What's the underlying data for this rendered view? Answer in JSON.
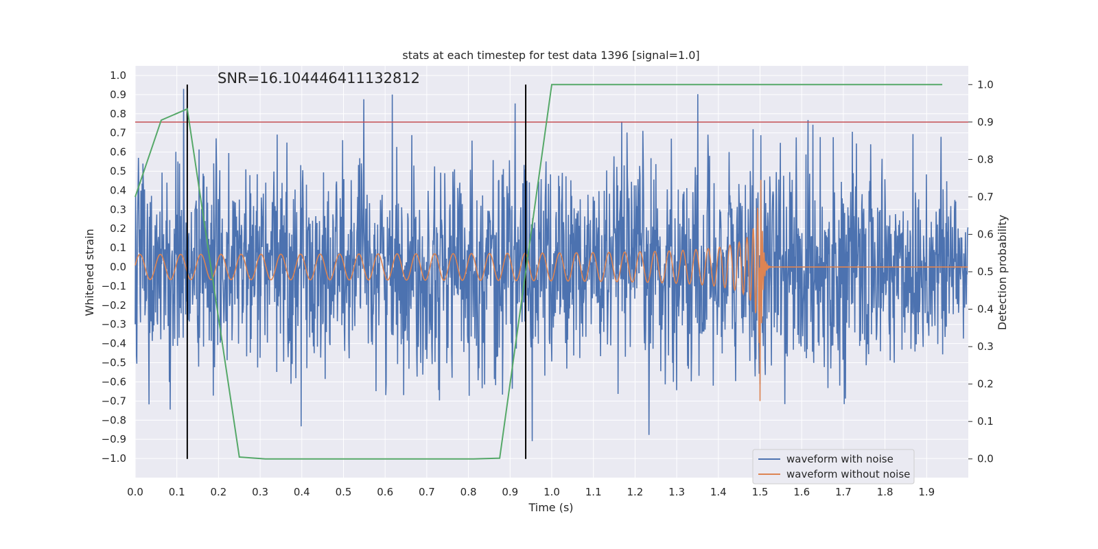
{
  "chart_data": {
    "type": "line",
    "title": "stats at each timestep for test data 1396 [signal=1.0]",
    "xlabel": "Time (s)",
    "ylabel_left": "Whitened strain",
    "ylabel_right": "Detection probability",
    "annotation": "SNR=16.104446411132812",
    "xlim": [
      0.0,
      2.0
    ],
    "ylim_left": [
      -1.1,
      1.05
    ],
    "ylim_right": [
      -0.05,
      1.05
    ],
    "x_ticks": [
      "0.0",
      "0.1",
      "0.2",
      "0.3",
      "0.4",
      "0.5",
      "0.6",
      "0.7",
      "0.8",
      "0.9",
      "1.0",
      "1.1",
      "1.2",
      "1.3",
      "1.4",
      "1.5",
      "1.6",
      "1.7",
      "1.8",
      "1.9"
    ],
    "y_left_ticks": [
      "1.0",
      "0.9",
      "0.8",
      "0.7",
      "0.6",
      "0.5",
      "0.4",
      "0.3",
      "0.2",
      "0.1",
      "0.0",
      "−0.1",
      "−0.2",
      "−0.3",
      "−0.4",
      "−0.5",
      "−0.6",
      "−0.7",
      "−0.8",
      "−0.9",
      "−1.0"
    ],
    "y_right_ticks": [
      "1.0",
      "0.9",
      "0.8",
      "0.7",
      "0.6",
      "0.5",
      "0.4",
      "0.3",
      "0.2",
      "0.1",
      "0.0"
    ],
    "grid": true,
    "legend_position": "lower-right",
    "colors": {
      "background": "#eaeaf2",
      "grid": "#ffffff",
      "noisy": "#4c72b0",
      "clean": "#dd8452",
      "probability": "#55a868",
      "threshold": "#c44e52",
      "markers": "#000000"
    },
    "series": [
      {
        "name": "waveform with noise",
        "axis": "left",
        "kind": "noise",
        "amplitude_std": 0.27,
        "y_range": [
          -1.0,
          0.93
        ]
      },
      {
        "name": "waveform without noise",
        "axis": "left",
        "kind": "chirp",
        "amplitude_start": 0.06,
        "amplitude_peak": 0.55,
        "merger_time": 1.5
      }
    ],
    "probability": {
      "axis": "right",
      "x": [
        0.0,
        0.0625,
        0.125,
        0.25,
        0.3125,
        0.8125,
        0.875,
        1.0,
        1.9375
      ],
      "y": [
        0.7,
        0.905,
        0.935,
        0.005,
        0.0,
        0.0,
        0.002,
        1.0,
        1.0
      ]
    },
    "threshold": {
      "axis": "right",
      "value": 0.9
    },
    "vertical_markers": [
      0.125,
      0.9375
    ]
  }
}
